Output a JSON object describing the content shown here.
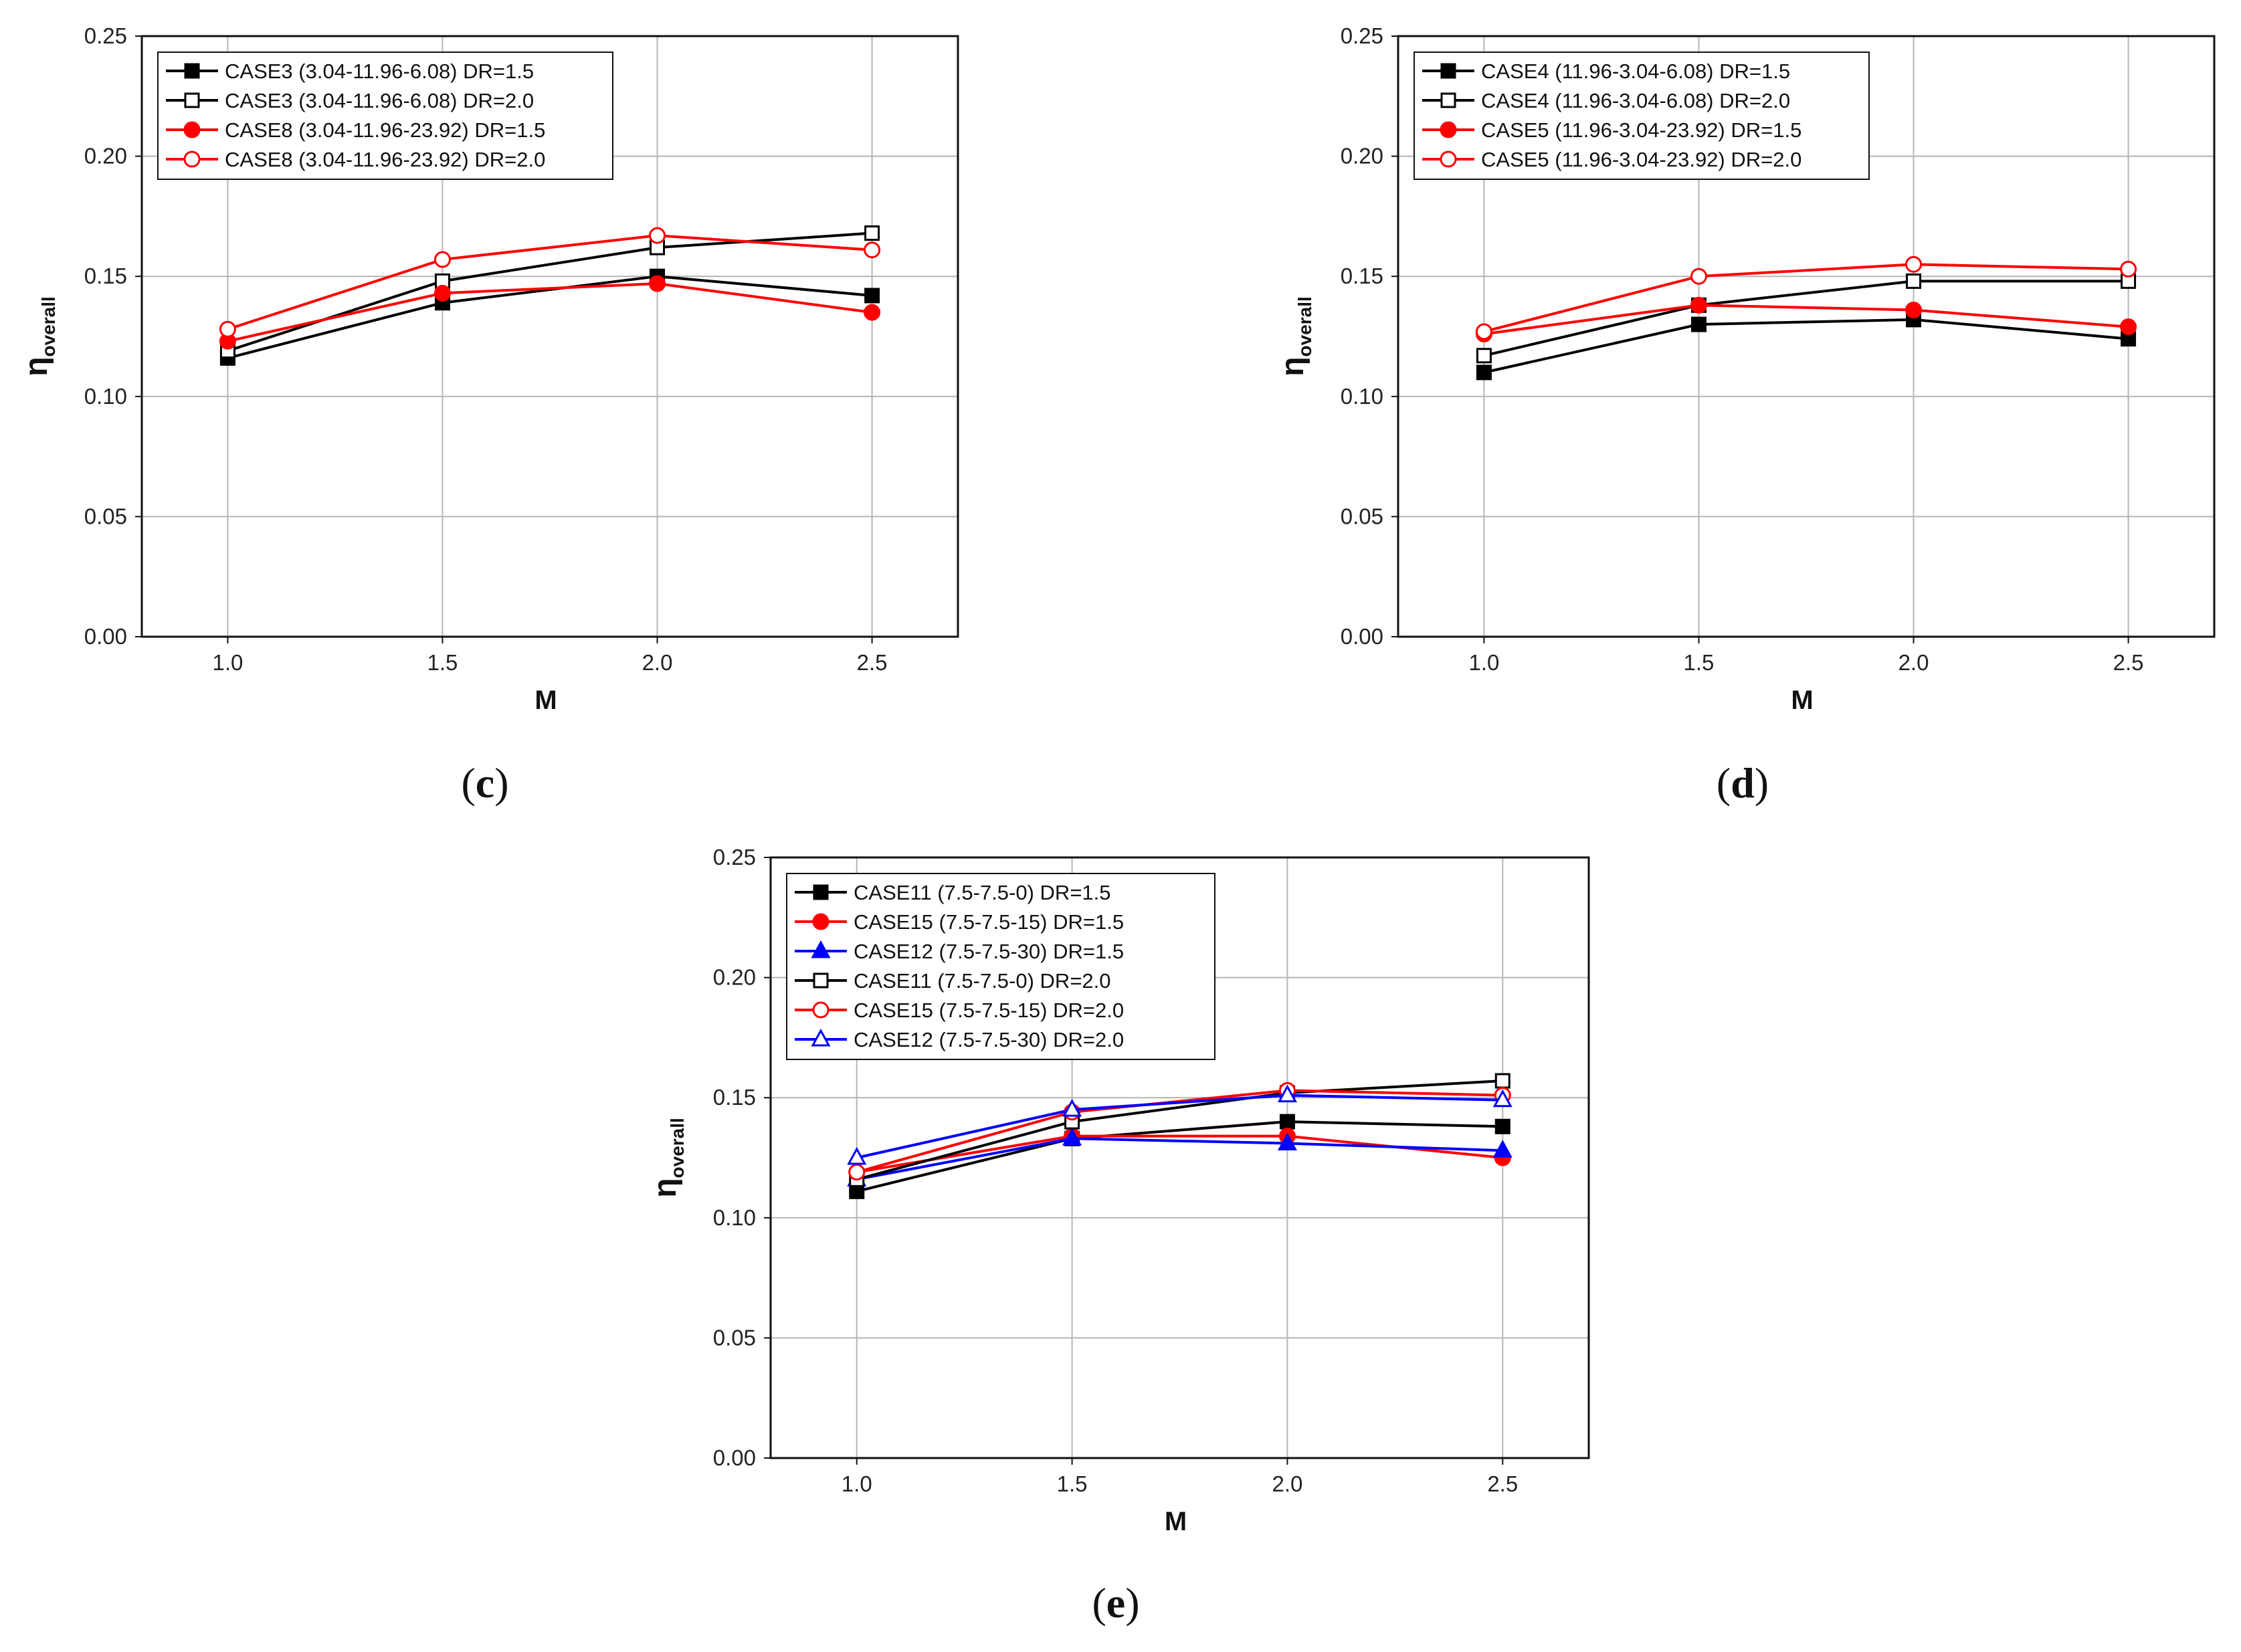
{
  "chart_data": [
    {
      "type": "line",
      "panel_label": "c",
      "xlabel": "M",
      "ylabel": "η",
      "ylabel_sub": "overall",
      "x": [
        1.0,
        1.5,
        2.0,
        2.5
      ],
      "x_ticks": [
        "1.0",
        "1.5",
        "2.0",
        "2.5"
      ],
      "xlim": [
        0.8,
        2.7
      ],
      "ylim": [
        0.0,
        0.25
      ],
      "y_ticks": [
        "0.00",
        "0.05",
        "0.10",
        "0.15",
        "0.20",
        "0.25"
      ],
      "grid": true,
      "legend_position": "top-left",
      "series": [
        {
          "name": "CASE3 (3.04-11.96-6.08) DR=1.5",
          "color": "#000000",
          "marker": "square",
          "filled": true,
          "values": [
            0.116,
            0.139,
            0.15,
            0.142
          ]
        },
        {
          "name": "CASE3 (3.04-11.96-6.08) DR=2.0",
          "color": "#000000",
          "marker": "square",
          "filled": false,
          "values": [
            0.119,
            0.148,
            0.162,
            0.168
          ]
        },
        {
          "name": "CASE8 (3.04-11.96-23.92) DR=1.5",
          "color": "#ff0000",
          "marker": "circle",
          "filled": true,
          "values": [
            0.123,
            0.143,
            0.147,
            0.135
          ]
        },
        {
          "name": "CASE8 (3.04-11.96-23.92) DR=2.0",
          "color": "#ff0000",
          "marker": "circle",
          "filled": false,
          "values": [
            0.128,
            0.157,
            0.167,
            0.161
          ]
        }
      ]
    },
    {
      "type": "line",
      "panel_label": "d",
      "xlabel": "M",
      "ylabel": "η",
      "ylabel_sub": "overall",
      "x": [
        1.0,
        1.5,
        2.0,
        2.5
      ],
      "x_ticks": [
        "1.0",
        "1.5",
        "2.0",
        "2.5"
      ],
      "xlim": [
        0.8,
        2.7
      ],
      "ylim": [
        0.0,
        0.25
      ],
      "y_ticks": [
        "0.00",
        "0.05",
        "0.10",
        "0.15",
        "0.20",
        "0.25"
      ],
      "grid": true,
      "legend_position": "top-left",
      "series": [
        {
          "name": "CASE4 (11.96-3.04-6.08) DR=1.5",
          "color": "#000000",
          "marker": "square",
          "filled": true,
          "values": [
            0.11,
            0.13,
            0.132,
            0.124
          ]
        },
        {
          "name": "CASE4 (11.96-3.04-6.08) DR=2.0",
          "color": "#000000",
          "marker": "square",
          "filled": false,
          "values": [
            0.117,
            0.138,
            0.148,
            0.148
          ]
        },
        {
          "name": "CASE5 (11.96-3.04-23.92) DR=1.5",
          "color": "#ff0000",
          "marker": "circle",
          "filled": true,
          "values": [
            0.126,
            0.138,
            0.136,
            0.129
          ]
        },
        {
          "name": "CASE5 (11.96-3.04-23.92) DR=2.0",
          "color": "#ff0000",
          "marker": "circle",
          "filled": false,
          "values": [
            0.127,
            0.15,
            0.155,
            0.153
          ]
        }
      ]
    },
    {
      "type": "line",
      "panel_label": "e",
      "xlabel": "M",
      "ylabel": "η",
      "ylabel_sub": "overall",
      "x": [
        1.0,
        1.5,
        2.0,
        2.5
      ],
      "x_ticks": [
        "1.0",
        "1.5",
        "2.0",
        "2.5"
      ],
      "xlim": [
        0.8,
        2.7
      ],
      "ylim": [
        0.0,
        0.25
      ],
      "y_ticks": [
        "0.00",
        "0.05",
        "0.10",
        "0.15",
        "0.20",
        "0.25"
      ],
      "grid": true,
      "legend_position": "top-left",
      "series": [
        {
          "name": "CASE11 (7.5-7.5-0) DR=1.5",
          "color": "#000000",
          "marker": "square",
          "filled": true,
          "values": [
            0.111,
            0.133,
            0.14,
            0.138
          ]
        },
        {
          "name": "CASE15 (7.5-7.5-15) DR=1.5",
          "color": "#ff0000",
          "marker": "circle",
          "filled": true,
          "values": [
            0.119,
            0.134,
            0.134,
            0.125
          ]
        },
        {
          "name": "CASE12 (7.5-7.5-30) DR=1.5",
          "color": "#0000ff",
          "marker": "triangle",
          "filled": true,
          "values": [
            0.116,
            0.133,
            0.131,
            0.128
          ]
        },
        {
          "name": "CASE11 (7.5-7.5-0) DR=2.0",
          "color": "#000000",
          "marker": "square",
          "filled": false,
          "values": [
            0.116,
            0.14,
            0.152,
            0.157
          ]
        },
        {
          "name": "CASE15 (7.5-7.5-15) DR=2.0",
          "color": "#ff0000",
          "marker": "circle",
          "filled": false,
          "values": [
            0.119,
            0.144,
            0.153,
            0.151
          ]
        },
        {
          "name": "CASE12 (7.5-7.5-30) DR=2.0",
          "color": "#0000ff",
          "marker": "triangle",
          "filled": false,
          "values": [
            0.125,
            0.145,
            0.151,
            0.149
          ]
        }
      ]
    }
  ]
}
